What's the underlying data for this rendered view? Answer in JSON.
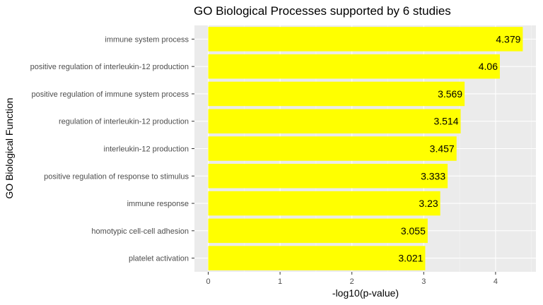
{
  "chart_data": {
    "type": "bar",
    "orientation": "horizontal",
    "title": "GO Biological Processes supported by 6 studies",
    "xlabel": "-log10(p-value)",
    "ylabel": "GO Biological Function",
    "categories": [
      "immune system process",
      "positive regulation of interleukin-12 production",
      "positive regulation of immune system process",
      "regulation of interleukin-12 production",
      "interleukin-12 production",
      "positive regulation of response to stimulus",
      "immune response",
      "homotypic cell-cell adhesion",
      "platelet activation"
    ],
    "values": [
      4.379,
      4.06,
      3.569,
      3.514,
      3.457,
      3.333,
      3.23,
      3.055,
      3.021
    ],
    "value_labels": [
      "4.379",
      "4.06",
      "3.569",
      "3.514",
      "3.457",
      "3.333",
      "3.23",
      "3.055",
      "3.021"
    ],
    "x_ticks": [
      0,
      1,
      2,
      3,
      4
    ],
    "x_tick_labels": [
      "0",
      "1",
      "2",
      "3",
      "4"
    ],
    "xlim": [
      0,
      4.6
    ],
    "grid": true,
    "bar_color": "#ffff00",
    "panel_background": "#ebebeb"
  }
}
